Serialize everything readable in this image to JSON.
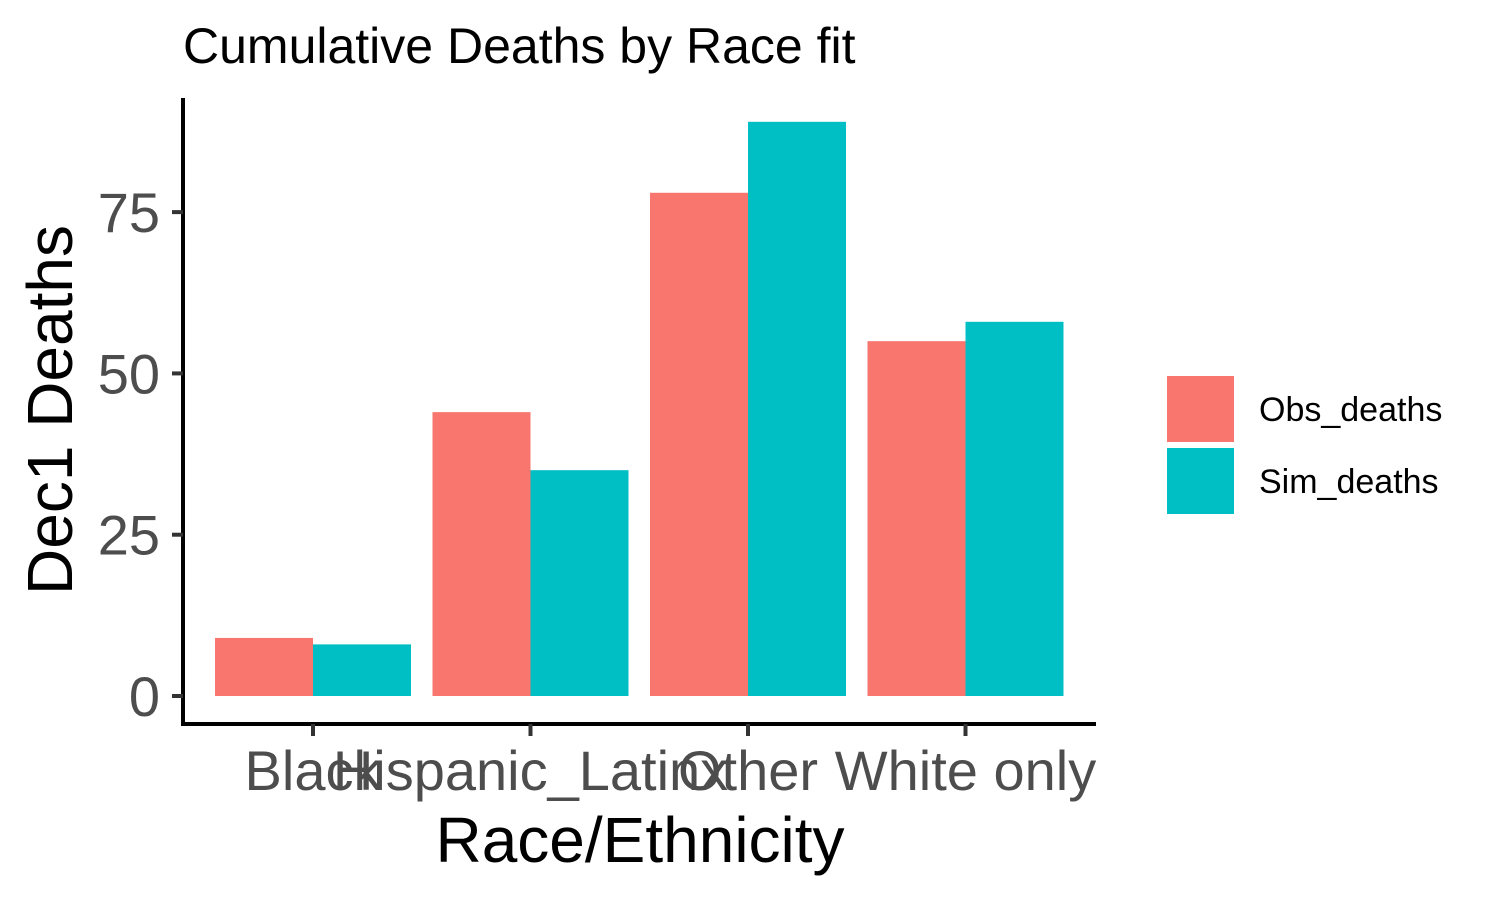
{
  "chart_data": {
    "type": "bar",
    "title": "Cumulative Deaths by Race fit",
    "xlabel": "Race/Ethnicity",
    "ylabel": "Dec1 Deaths",
    "categories": [
      "Black",
      "Hispanic_Latinx",
      "Other",
      "White only"
    ],
    "series": [
      {
        "name": "Obs_deaths",
        "color": "#F8766D",
        "values": [
          9,
          44,
          78,
          55
        ]
      },
      {
        "name": "Sim_deaths",
        "color": "#00BFC4",
        "values": [
          8,
          35,
          89,
          58
        ]
      }
    ],
    "y_ticks": [
      0,
      25,
      50,
      75
    ],
    "ylim": [
      0,
      93
    ],
    "grid": false,
    "legend_position": "right"
  }
}
